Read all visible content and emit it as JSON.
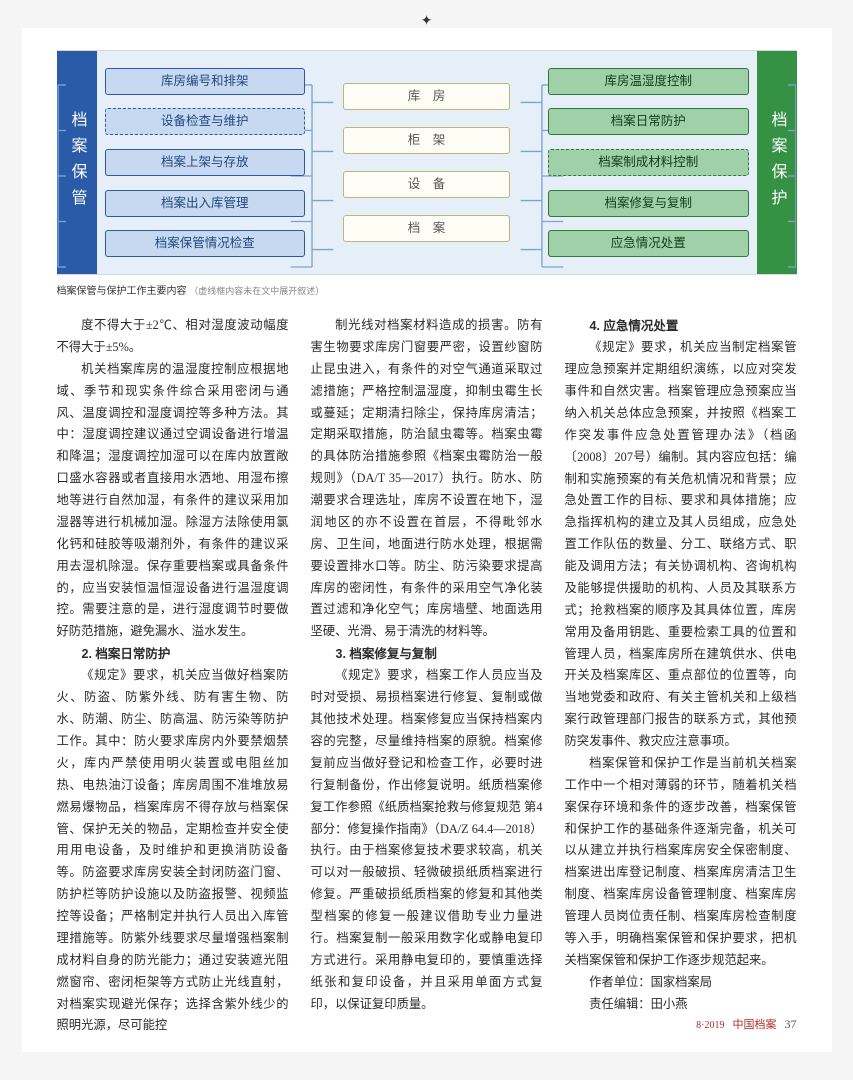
{
  "diagram": {
    "left_label": "档案保管",
    "right_label": "档案保护",
    "left_nodes": [
      {
        "text": "库房编号和排架",
        "dashed": false
      },
      {
        "text": "设备检查与维护",
        "dashed": true
      },
      {
        "text": "档案上架与存放",
        "dashed": false
      },
      {
        "text": "档案出入库管理",
        "dashed": false
      },
      {
        "text": "档案保管情况检查",
        "dashed": false
      }
    ],
    "mid_nodes": [
      {
        "text": "库　房"
      },
      {
        "text": "柜　架"
      },
      {
        "text": "设　备"
      },
      {
        "text": "档　案"
      }
    ],
    "right_nodes": [
      {
        "text": "库房温湿度控制",
        "dashed": false
      },
      {
        "text": "档案日常防护",
        "dashed": false
      },
      {
        "text": "档案制成材料控制",
        "dashed": true
      },
      {
        "text": "档案修复与复制",
        "dashed": false
      },
      {
        "text": "应急情况处置",
        "dashed": false
      }
    ],
    "caption": "档案保管与保护工作主要内容",
    "caption_note": "（虚线框内容未在文中展开叙述）",
    "colors": {
      "panel_bg": "#e6eef7",
      "left_side": "#2a5ba8",
      "right_side": "#359144",
      "blue_fill": "#c6d9f0",
      "blue_border": "#2a5ba8",
      "green_fill": "#9fd0a7",
      "green_border": "#2e7a3b",
      "cream_fill": "#fdfdf5",
      "cream_border": "#b8b87a",
      "connector": "#7ba3d4"
    },
    "fontsize_node": 12.5,
    "fontsize_side": 16,
    "fontsize_caption": 10
  },
  "text": {
    "col1": {
      "p1": "度不得大于±2℃、相对湿度波动幅度不得大于±5%。",
      "p2": "机关档案库房的温湿度控制应根据地域、季节和现实条件综合采用密闭与通风、温度调控和湿度调控等多种方法。其中：湿度调控建议通过空调设备进行增温和降温；湿度调控加湿可以在库内放置敞口盛水容器或者直接用水洒地、用湿布擦地等进行自然加湿，有条件的建议采用加湿器等进行机械加湿。除湿方法除使用氯化钙和硅胶等吸潮剂外，有条件的建议采用去湿机除湿。保存重要档案或具备条件的，应当安装恒温恒湿设备进行温湿度调控。需要注意的是，进行湿度调节时要做好防范措施，避免漏水、溢水发生。",
      "h1": "2. 档案日常防护",
      "p3": "《规定》要求，机关应当做好档案防火、防盗、防紫外线、防有害生物、防水、防潮、防尘、防高温、防污染等防护工作。其中：防火要求库房内外要禁烟禁火，库内严禁使用明火装置或电阻丝加热、电热油汀设备；库房周围不准堆放易燃易爆物品，档案库房不得存放与档案保管、保护无关的物品，定期检查并安全使用用电设备，及时维护和更换消防设备等。防盗要求库房安装全封闭防盗门窗、防护栏等防护设施以及防盗报警、视频监控等设备；严格制定并执行人员出入库管理措施等。防紫外线要求尽量增强档案制成材料自身的防光能力；通过安装遮光阻燃窗帘、密闭柜架等方式防止光线直射，对档案实现避光保存；选择含紫外线少的照明光源，尽可能控"
    },
    "col2": {
      "p1": "制光线对档案材料造成的损害。防有害生物要求库房门窗要严密，设置纱窗防止昆虫进入，有条件的对空气通道采取过滤措施；严格控制温湿度，抑制虫霉生长或蔓延；定期清扫除尘，保持库房清洁；定期采取措施，防治鼠虫霉等。档案虫霉的具体防治措施参照《档案虫霉防治一般规则》（DA/T 35—2017）执行。防水、防潮要求合理选址，库房不设置在地下，湿润地区的亦不设置在首层，不得毗邻水房、卫生间，地面进行防水处理，根据需要设置排水口等。防尘、防污染要求提高库房的密闭性，有条件的采用空气净化装置过滤和净化空气；库房墙壁、地面选用坚硬、光滑、易于清洗的材料等。",
      "h1": "3. 档案修复与复制",
      "p2": "《规定》要求，档案工作人员应当及时对受损、易损档案进行修复、复制或做其他技术处理。档案修复应当保持档案内容的完整，尽量维持档案的原貌。档案修复前应当做好登记和检查工作，必要时进行复制备份，作出修复说明。纸质档案修复工作参照《纸质档案抢救与修复规范 第4部分：修复操作指南》（DA/Z 64.4—2018）执行。由于档案修复技术要求较高，机关可以对一般破损、轻微破损纸质档案进行修复。严重破损纸质档案的修复和其他类型档案的修复一般建议借助专业力量进行。档案复制一般采用数字化或静电复印方式进行。采用静电复印的，要慎重选择纸张和复印设备，并且采用单面方式复印，以保证复印质量。"
    },
    "col3": {
      "h1": "4. 应急情况处置",
      "p1": "《规定》要求，机关应当制定档案管理应急预案并定期组织演练，以应对突发事件和自然灾害。档案管理应急预案应当纳入机关总体应急预案，并按照《档案工作突发事件应急处置管理办法》（档函〔2008〕207号）编制。其内容应包括：编制和实施预案的有关危机情况和背景；应急处置工作的目标、要求和具体措施；应急指挥机构的建立及其人员组成，应急处置工作队伍的数量、分工、联络方式、职能及调用方法；有关协调机构、咨询机构及能够提供援助的机构、人员及其联系方式；抢救档案的顺序及其具体位置，库房常用及备用钥匙、重要检索工具的位置和管理人员，档案库房所在建筑供水、供电开关及档案库区、重点部位的位置等，向当地党委和政府、有关主管机关和上级档案行政管理部门报告的联系方式，其他预防突发事件、救灾应注意事项。",
      "p2": "档案保管和保护工作是当前机关档案工作中一个相对薄弱的环节，随着机关档案保存环境和条件的逐步改善，档案保管和保护工作的基础条件逐渐完备，机关可以从建立并执行档案库房安全保密制度、档案进出库登记制度、档案库房清洁卫生制度、档案库房设备管理制度、档案库房管理人员岗位责任制、档案库房检查制度等入手，明确档案保管和保护要求，把机关档案保管和保护工作逐步规范起来。",
      "byline1": "作者单位：国家档案局",
      "byline2": "责任编辑：田小燕"
    }
  },
  "footer": {
    "issue": "8·2019",
    "journal": "中国档案",
    "page": "37"
  }
}
